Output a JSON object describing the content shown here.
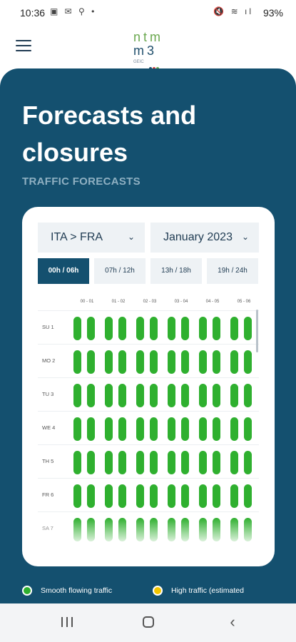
{
  "status_bar": {
    "time": "10:36",
    "left_icons": "▣ ✉ ⚲ •",
    "right_icons": "🔇 ≋ ıl",
    "battery": "93%"
  },
  "header": {
    "logo_top": "ntm",
    "logo_bottom": "m3",
    "logo_sub": "GEIC",
    "logo_dot_colors": [
      "#1f4e6b",
      "#d13a3a",
      "#6aa84f"
    ]
  },
  "page": {
    "title": "Forecasts and closures",
    "subtitle": "TRAFFIC FORECASTS"
  },
  "filters": {
    "direction": "ITA > FRA",
    "month": "January 2023"
  },
  "time_slots": [
    {
      "label": "00h / 06h",
      "active": true
    },
    {
      "label": "07h / 12h",
      "active": false
    },
    {
      "label": "13h / 18h",
      "active": false
    },
    {
      "label": "19h / 24h",
      "active": false
    }
  ],
  "grid": {
    "columns": [
      "00 - 01",
      "01 - 02",
      "02 - 03",
      "03 - 04",
      "04 - 05",
      "05 - 06"
    ],
    "rows": [
      "SU 1",
      "MO 2",
      "TU 3",
      "WE 4",
      "TH 5",
      "FR 6",
      "SA 7"
    ],
    "status": "smooth"
  },
  "legend": [
    {
      "label": "Smooth flowing traffic",
      "color": "#2fb02f"
    },
    {
      "label": "High traffic (estimated",
      "color": "#f2c500"
    }
  ],
  "colors": {
    "primary": "#14506f",
    "smooth": "#2fb02f",
    "high": "#f2c500"
  }
}
